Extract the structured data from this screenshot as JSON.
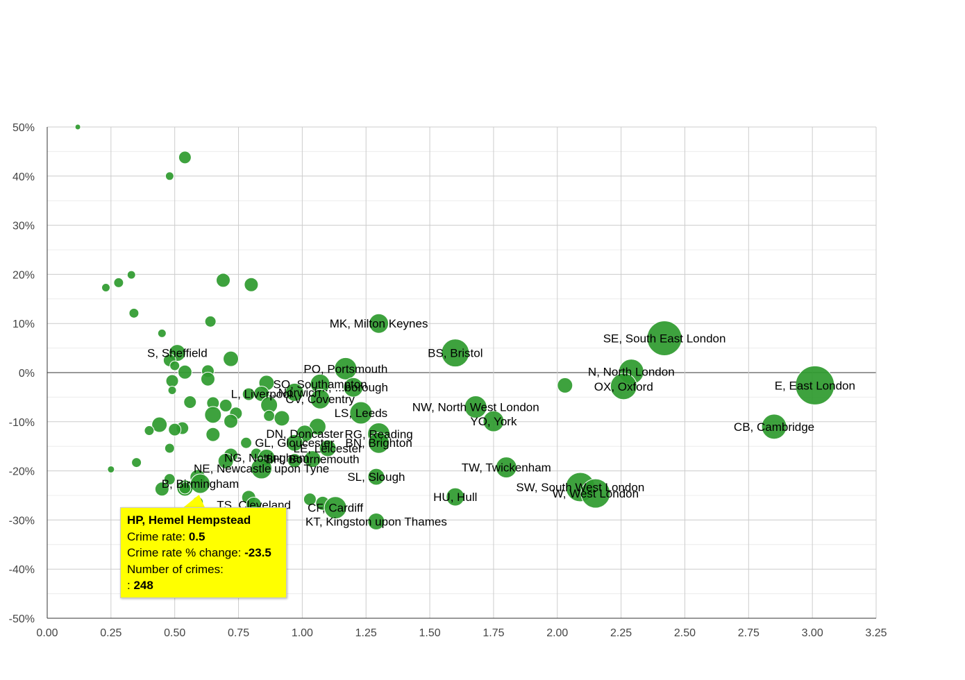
{
  "chart_data": {
    "type": "scatter",
    "subtype": "bubble",
    "xlim": [
      0,
      3.25
    ],
    "ylim": [
      -50,
      50
    ],
    "x_ticks": [
      "0.00",
      "0.25",
      "0.50",
      "0.75",
      "1.00",
      "1.25",
      "1.50",
      "1.75",
      "2.00",
      "2.25",
      "2.50",
      "2.75",
      "3.00",
      "3.25"
    ],
    "x_tick_values": [
      0,
      0.25,
      0.5,
      0.75,
      1.0,
      1.25,
      1.5,
      1.75,
      2.0,
      2.25,
      2.5,
      2.75,
      3.0,
      3.25
    ],
    "y_ticks": [
      "50%",
      "40%",
      "30%",
      "20%",
      "10%",
      "0%",
      "-10%",
      "-20%",
      "-30%",
      "-40%",
      "-50%"
    ],
    "y_tick_values": [
      50,
      40,
      30,
      20,
      10,
      0,
      -10,
      -20,
      -30,
      -40,
      -50
    ],
    "grid": true,
    "bubble_color": "#2e9a2e",
    "points": [
      {
        "x": 0.12,
        "y": 50,
        "r": 4
      },
      {
        "x": 0.54,
        "y": 43.8,
        "r": 9
      },
      {
        "x": 0.48,
        "y": 40,
        "r": 6
      },
      {
        "x": 0.33,
        "y": 19.9,
        "r": 6
      },
      {
        "x": 0.28,
        "y": 18.3,
        "r": 7
      },
      {
        "x": 0.23,
        "y": 17.3,
        "r": 6
      },
      {
        "x": 0.69,
        "y": 18.8,
        "r": 10
      },
      {
        "x": 0.8,
        "y": 17.9,
        "r": 10
      },
      {
        "x": 0.34,
        "y": 12.1,
        "r": 7
      },
      {
        "x": 0.64,
        "y": 10.4,
        "r": 8
      },
      {
        "x": 0.45,
        "y": 8.0,
        "r": 6
      },
      {
        "x": 1.3,
        "y": 10,
        "r": 14,
        "label": "MK, Milton Keynes"
      },
      {
        "x": 1.6,
        "y": 4,
        "r": 20,
        "label": "BS, Bristol"
      },
      {
        "x": 2.42,
        "y": 7,
        "r": 25,
        "label": "SE, South East London"
      },
      {
        "x": 0.51,
        "y": 4,
        "r": 12,
        "label": "S, Sheffield"
      },
      {
        "x": 0.72,
        "y": 2.8,
        "r": 11
      },
      {
        "x": 0.48,
        "y": 2.5,
        "r": 9
      },
      {
        "x": 0.5,
        "y": 1.4,
        "r": 7
      },
      {
        "x": 0.54,
        "y": 0.1,
        "r": 10
      },
      {
        "x": 0.63,
        "y": 0.3,
        "r": 9
      },
      {
        "x": 0.63,
        "y": -1.3,
        "r": 10
      },
      {
        "x": 0.49,
        "y": -1.7,
        "r": 9
      },
      {
        "x": 0.49,
        "y": -3.6,
        "r": 6
      },
      {
        "x": 1.17,
        "y": 0.8,
        "r": 16,
        "label": "PO, Portsmouth"
      },
      {
        "x": 2.29,
        "y": 0.2,
        "r": 18,
        "label": "N, North London"
      },
      {
        "x": 2.03,
        "y": -2.6,
        "r": 11
      },
      {
        "x": 2.26,
        "y": -2.8,
        "r": 19,
        "label": "OX, Oxford"
      },
      {
        "x": 3.01,
        "y": -2.6,
        "r": 28,
        "label": "E, East London"
      },
      {
        "x": 0.86,
        "y": -2.1,
        "r": 11
      },
      {
        "x": 1.07,
        "y": -2.3,
        "r": 14,
        "label": "SO, Southampton"
      },
      {
        "x": 1.2,
        "y": -3.0,
        "r": 14,
        "label": "..., ...borough"
      },
      {
        "x": 0.84,
        "y": -4.3,
        "r": 11,
        "label": "L, Liverpool"
      },
      {
        "x": 0.97,
        "y": -4.0,
        "r": 13,
        "label": "...Norwich"
      },
      {
        "x": 1.07,
        "y": -5.4,
        "r": 14,
        "label": "CV, Coventry"
      },
      {
        "x": 0.79,
        "y": -4.4,
        "r": 9
      },
      {
        "x": 0.7,
        "y": -6.7,
        "r": 9
      },
      {
        "x": 0.65,
        "y": -6.2,
        "r": 9
      },
      {
        "x": 0.56,
        "y": -6.0,
        "r": 9
      },
      {
        "x": 0.87,
        "y": -6.6,
        "r": 12
      },
      {
        "x": 0.74,
        "y": -8.3,
        "r": 9
      },
      {
        "x": 0.65,
        "y": -8.6,
        "r": 12
      },
      {
        "x": 0.87,
        "y": -8.8,
        "r": 8
      },
      {
        "x": 0.92,
        "y": -9.3,
        "r": 11
      },
      {
        "x": 1.68,
        "y": -7.0,
        "r": 16,
        "label": "NW, North West London"
      },
      {
        "x": 1.23,
        "y": -8.2,
        "r": 16,
        "label": "LS, Leeds"
      },
      {
        "x": 1.75,
        "y": -9.9,
        "r": 15,
        "label": "YO, York"
      },
      {
        "x": 2.85,
        "y": -11,
        "r": 18,
        "label": "CB, Cambridge"
      },
      {
        "x": 0.72,
        "y": -9.9,
        "r": 10
      },
      {
        "x": 0.44,
        "y": -10.6,
        "r": 11
      },
      {
        "x": 0.53,
        "y": -11.3,
        "r": 9
      },
      {
        "x": 0.5,
        "y": -11.6,
        "r": 9
      },
      {
        "x": 0.4,
        "y": -11.8,
        "r": 7
      },
      {
        "x": 1.06,
        "y": -11.0,
        "r": 12
      },
      {
        "x": 0.65,
        "y": -12.6,
        "r": 10
      },
      {
        "x": 1.01,
        "y": -12.4,
        "r": 12,
        "label": "DN, Doncaster"
      },
      {
        "x": 1.3,
        "y": -12.5,
        "r": 16,
        "label": "RG, Reading"
      },
      {
        "x": 0.78,
        "y": -14.3,
        "r": 8
      },
      {
        "x": 0.48,
        "y": -15.4,
        "r": 7
      },
      {
        "x": 0.97,
        "y": -14.3,
        "r": 12,
        "label": "GL, Gloucester"
      },
      {
        "x": 1.3,
        "y": -14.3,
        "r": 15,
        "label": "BN, Brighton"
      },
      {
        "x": 1.1,
        "y": -15.4,
        "r": 12,
        "label": "LE, Leicester"
      },
      {
        "x": 0.82,
        "y": -16.5,
        "r": 8
      },
      {
        "x": 0.72,
        "y": -16.8,
        "r": 10
      },
      {
        "x": 0.86,
        "y": -17.3,
        "r": 12,
        "label": "NG, Nottingham"
      },
      {
        "x": 1.04,
        "y": -17.6,
        "r": 12,
        "label": "BH, Bournemouth"
      },
      {
        "x": 0.97,
        "y": -17.9,
        "r": 10
      },
      {
        "x": 0.7,
        "y": -18.0,
        "r": 11
      },
      {
        "x": 0.35,
        "y": -18.3,
        "r": 7
      },
      {
        "x": 0.84,
        "y": -19.5,
        "r": 15,
        "label": "NE, Newcastle upon Tyne"
      },
      {
        "x": 0.25,
        "y": -19.7,
        "r": 5
      },
      {
        "x": 1.8,
        "y": -19.3,
        "r": 15,
        "label": "TW, Twickenham"
      },
      {
        "x": 1.29,
        "y": -21.2,
        "r": 12,
        "label": "SL, Slough"
      },
      {
        "x": 0.59,
        "y": -21.3,
        "r": 11
      },
      {
        "x": 0.48,
        "y": -21.7,
        "r": 8
      },
      {
        "x": 0.6,
        "y": -22.6,
        "r": 14,
        "label": "B, Birmingham"
      },
      {
        "x": 0.45,
        "y": -23.7,
        "r": 10
      },
      {
        "x": 2.09,
        "y": -23.3,
        "r": 21,
        "label": "SW, South West London"
      },
      {
        "x": 2.15,
        "y": -24.6,
        "r": 21,
        "label": "W, West London"
      },
      {
        "x": 0.54,
        "y": -23.5,
        "r": 10,
        "label": "HP, Hemel Hempstead"
      },
      {
        "x": 1.6,
        "y": -25.3,
        "r": 13,
        "label": "HU, Hull"
      },
      {
        "x": 0.79,
        "y": -25.4,
        "r": 10
      },
      {
        "x": 1.03,
        "y": -25.8,
        "r": 9
      },
      {
        "x": 0.59,
        "y": -26.4,
        "r": 8
      },
      {
        "x": 0.81,
        "y": -26.9,
        "r": 11,
        "label": "TS, Cleveland"
      },
      {
        "x": 1.08,
        "y": -26.6,
        "r": 10
      },
      {
        "x": 1.13,
        "y": -27.5,
        "r": 16,
        "label": "CF, Cardiff"
      },
      {
        "x": 1.29,
        "y": -30.3,
        "r": 12,
        "label": "KT, Kingston upon Thames"
      }
    ],
    "tooltip": {
      "title": "HP, Hemel Hempstead",
      "crime_rate_label": "Crime rate:",
      "crime_rate_value": "0.5",
      "change_label": "Crime rate % change:",
      "change_value": "-23.5",
      "count_label": "Number of crimes:",
      "count_prefix": ":",
      "count_value": "248",
      "background": "#ffff00"
    }
  }
}
